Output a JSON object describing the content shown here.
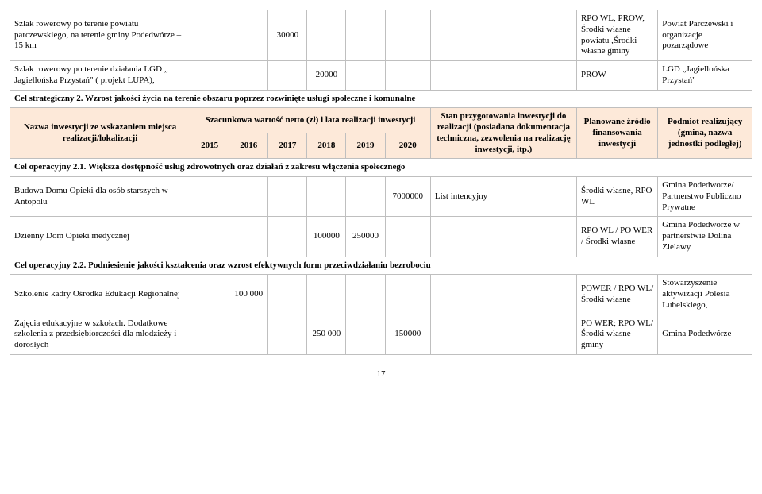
{
  "rows_top": [
    {
      "name": "Szlak rowerowy po terenie powiatu parczewskiego, na terenie gminy Podedwórze – 15 km",
      "y2015": "",
      "y2016": "",
      "y2017": "30000",
      "y2018": "",
      "y2019": "",
      "y2020": "",
      "status": "",
      "fund": "RPO WL, PROW, Środki własne powiatu ,Środki własne gminy",
      "entity": "Powiat Parczewski i organizacje pozarządowe"
    },
    {
      "name": "Szlak rowerowy po terenie działania LGD „ Jagiellońska Przystań\" ( projekt LUPA),",
      "y2015": "",
      "y2016": "",
      "y2017": "",
      "y2018": "20000",
      "y2019": "",
      "y2020": "",
      "status": "",
      "fund": "PROW",
      "entity": "LGD „Jagiellońska Przystań\""
    }
  ],
  "goal2": "Cel strategiczny 2. Wzrost jakości życia na terenie obszaru poprzez rozwinięte usługi społeczne i komunalne",
  "header": {
    "col0": "Nazwa inwestycji ze wskazaniem miejsca realizacji/lokalizacji",
    "span": "Szacunkowa wartość netto (zł) i lata realizacji inwestycji",
    "y2015": "2015",
    "y2016": "2016",
    "y2017": "2017",
    "y2018": "2018",
    "y2019": "2019",
    "y2020": "2020",
    "status": "Stan przygotowania inwestycji do realizacji (posiadana dokumentacja techniczna, zezwolenia na realizację inwestycji, itp.)",
    "fund": "Planowane źródło finansowania inwestycji",
    "entity": "Podmiot realizujący (gmina, nazwa jednostki podległej)"
  },
  "op21": "Cel operacyjny 2.1. Większa dostępność usług zdrowotnych oraz działań z zakresu włączenia społecznego",
  "rows21": [
    {
      "name": "Budowa Domu Opieki dla osób starszych w Antopolu",
      "y2015": "",
      "y2016": "",
      "y2017": "",
      "y2018": "",
      "y2019": "",
      "y2020": "7000000",
      "status": "List intencyjny",
      "fund": "Środki własne, RPO WL",
      "entity": "Gmina Podedworze/ Partnerstwo Publiczno Prywatne"
    },
    {
      "name": "Dzienny Dom Opieki medycznej",
      "y2015": "",
      "y2016": "",
      "y2017": "",
      "y2018": "100000",
      "y2019": "250000",
      "y2020": "",
      "status": "",
      "fund": "RPO WL / PO WER / Środki własne",
      "entity": "Gmina Podedworze w partnerstwie Dolina Zielawy"
    }
  ],
  "op22": "Cel operacyjny 2.2. Podniesienie jakości kształcenia oraz wzrost efektywnych form przeciwdziałaniu bezrobociu",
  "rows22": [
    {
      "name": "Szkolenie kadry Ośrodka Edukacji Regionalnej",
      "y2015": "",
      "y2016": "100 000",
      "y2017": "",
      "y2018": "",
      "y2019": "",
      "y2020": "",
      "status": "",
      "fund": "POWER / RPO WL/Środki własne",
      "entity": "Stowarzyszenie aktywizacji Polesia Lubelskiego,"
    },
    {
      "name": "Zajęcia edukacyjne w szkołach. Dodatkowe szkolenia z przedsiębiorczości dla młodzieży i dorosłych",
      "y2015": "",
      "y2016": "",
      "y2017": "",
      "y2018": "250 000",
      "y2019": "",
      "y2020": "150000",
      "status": "",
      "fund": "PO WER; RPO WL/Środki własne gminy",
      "entity": "Gmina Podedwórze"
    }
  ],
  "page": "17"
}
